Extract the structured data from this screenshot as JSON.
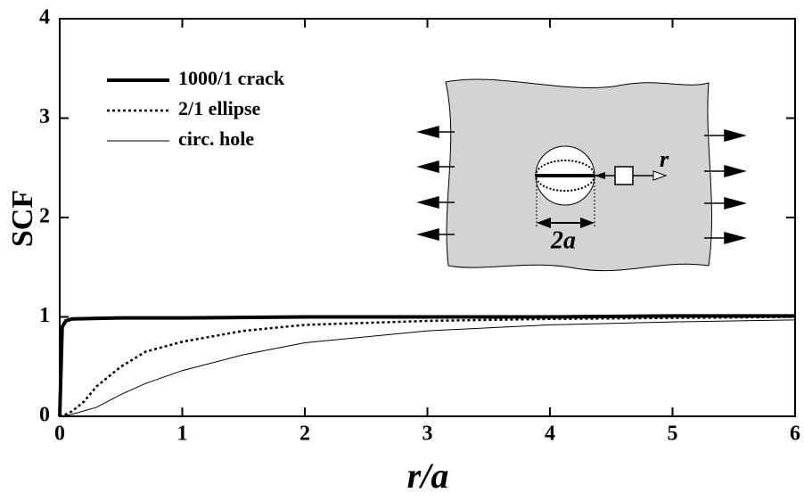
{
  "chart_data": {
    "type": "line",
    "xlabel": "r/a",
    "ylabel": "SCF",
    "xlim": [
      0,
      6
    ],
    "ylim": [
      0,
      4
    ],
    "xticks": [
      0,
      1,
      2,
      3,
      4,
      5,
      6
    ],
    "yticks": [
      0,
      1,
      2,
      3,
      4
    ],
    "legend": "upper left",
    "series": [
      {
        "name": "1000/1 crack",
        "color": "#000000",
        "width": 4,
        "style": "solid",
        "x": [
          0,
          0.02,
          0.05,
          0.1,
          0.5,
          1,
          2,
          3,
          4,
          5,
          6
        ],
        "values": [
          0,
          0.9,
          0.96,
          0.98,
          0.99,
          0.99,
          1.0,
          1.0,
          1.0,
          1.01,
          1.01
        ]
      },
      {
        "name": "2/1 ellipse",
        "color": "#000000",
        "width": 2.5,
        "style": "dotted",
        "x": [
          0,
          0.05,
          0.1,
          0.2,
          0.3,
          0.5,
          0.7,
          1,
          1.5,
          2,
          3,
          4,
          5,
          6
        ],
        "values": [
          0,
          0.02,
          0.05,
          0.15,
          0.3,
          0.5,
          0.65,
          0.75,
          0.86,
          0.92,
          0.96,
          0.98,
          0.99,
          1.0
        ]
      },
      {
        "name": "circ. hole",
        "color": "#000000",
        "width": 1,
        "style": "solid",
        "x": [
          0,
          0.1,
          0.3,
          0.5,
          0.7,
          1,
          1.5,
          2,
          3,
          4,
          5,
          6
        ],
        "values": [
          0,
          0.02,
          0.09,
          0.22,
          0.33,
          0.46,
          0.62,
          0.74,
          0.86,
          0.92,
          0.95,
          0.97
        ]
      }
    ],
    "annotations": {
      "radius": "r",
      "width": "2a"
    }
  }
}
